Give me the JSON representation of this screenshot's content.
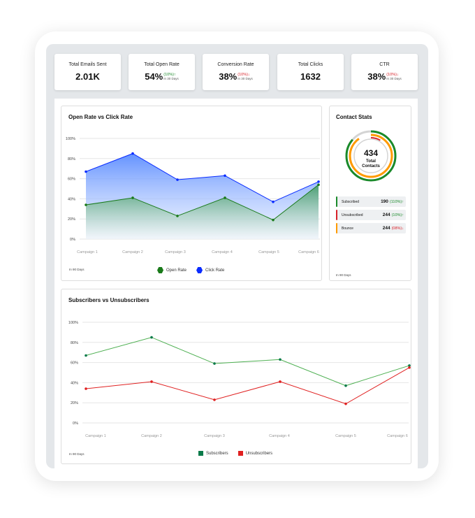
{
  "kpis": [
    {
      "title": "Total Emails Sent",
      "value": "2.01K"
    },
    {
      "title": "Total Open Rate",
      "value": "54%",
      "change": "(10%)",
      "trend": "up",
      "period": "In 30 Days"
    },
    {
      "title": "Conversion Rate",
      "value": "38%",
      "change": "(10%)",
      "trend": "down",
      "period": "In 30 Days"
    },
    {
      "title": "Total Clicks",
      "value": "1632"
    },
    {
      "title": "CTR",
      "value": "38%",
      "change": "(10%)",
      "trend": "down",
      "period": "In 30 Days"
    }
  ],
  "icons": {
    "up": "↑",
    "down": "↓",
    "arrow_up_icon": "arrow-up",
    "arrow_down_icon": "arrow-down"
  },
  "colors": {
    "green": "#1a8a2a",
    "red": "#d8222a",
    "orange": "#ff9a00",
    "blue": "#0a2cff"
  },
  "contact_stats": {
    "title": "Contact Stats",
    "total": "434",
    "total_label": "Total Contacts",
    "footer": "In 90 Days",
    "rows": [
      {
        "label": "Subscribed",
        "value": "190",
        "change": "(110%)",
        "trend": "up",
        "color": "#1a8a2a"
      },
      {
        "label": "Unsubscribed",
        "value": "244",
        "change": "(10%)",
        "trend": "up",
        "color": "#d8222a"
      },
      {
        "label": "Bounce",
        "value": "244",
        "change": "(08%)",
        "trend": "down",
        "color": "#ff9a00"
      }
    ]
  },
  "chart_data": [
    {
      "type": "area",
      "title": "Open Rate vs Click Rate",
      "footer": "In 90 Days",
      "categories": [
        "Campaign 1",
        "Campaign 2",
        "Campaign 3",
        "Campaign 4",
        "Campaign 5",
        "Campaign 6"
      ],
      "yticks": [
        "0%",
        "20%",
        "40%",
        "60%",
        "80%",
        "100%"
      ],
      "ylim": [
        0,
        100
      ],
      "grid": true,
      "legend": "bottom",
      "series": [
        {
          "name": "Open Rate",
          "color": "#1a7a1a",
          "values": [
            34,
            41,
            23,
            41,
            19,
            54
          ]
        },
        {
          "name": "Click Rate",
          "color": "#0a2cff",
          "values": [
            67,
            85,
            59,
            63,
            37,
            57
          ]
        }
      ]
    },
    {
      "type": "line",
      "title": "Subscribers vs Unsubscribers",
      "footer": "In 90 Days",
      "categories": [
        "Campaign 1",
        "Campaign 2",
        "Campaign 3",
        "Campaign 4",
        "Campaign 5",
        "Campaign 6"
      ],
      "yticks": [
        "0%",
        "20%",
        "40%",
        "60%",
        "80%",
        "100%"
      ],
      "ylim": [
        0,
        100
      ],
      "grid": true,
      "legend": "bottom",
      "series": [
        {
          "name": "Subscribers",
          "color": "#4caf50",
          "marker": "#0a7a4a",
          "values": [
            67,
            85,
            59,
            63,
            37,
            57
          ]
        },
        {
          "name": "Unsubscribers",
          "color": "#e02020",
          "marker": "#e02020",
          "values": [
            34,
            41,
            23,
            41,
            19,
            55
          ]
        }
      ]
    }
  ]
}
